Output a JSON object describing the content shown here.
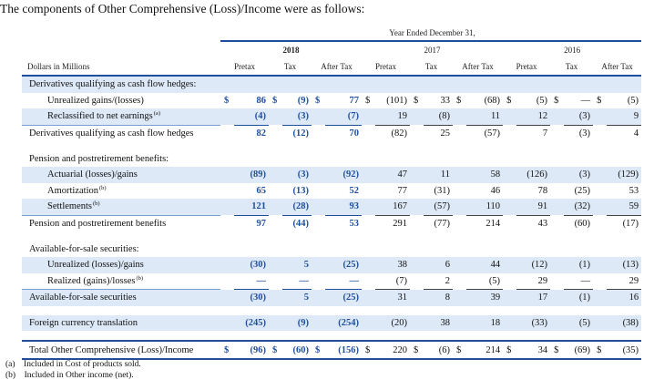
{
  "intro": "The components of Other Comprehensive (Loss)/Income were as follows:",
  "header": {
    "year_ended": "Year Ended December 31,",
    "years": [
      "2018",
      "2017",
      "2016"
    ],
    "units": "Dollars in Millions",
    "cols": [
      "Pretax",
      "Tax",
      "After Tax",
      "Pretax",
      "Tax",
      "After Tax",
      "Pretax",
      "Tax",
      "After Tax"
    ]
  },
  "rows": [
    {
      "label": "Derivatives qualifying as cash flow hedges:",
      "type": "section",
      "shade": true
    },
    {
      "label": "Unrealized gains/(losses)",
      "sup": "",
      "type": "item",
      "cur": true,
      "vals": [
        "86",
        "(9)",
        "77",
        "(101)",
        "33",
        "(68)",
        "(5)",
        "—",
        "(5)"
      ]
    },
    {
      "label": "Reclassified to net earnings",
      "sup": "(a)",
      "type": "item",
      "shade": true,
      "vals": [
        "(4)",
        "(3)",
        "(7)",
        "19",
        "(8)",
        "11",
        "12",
        "(3)",
        "9"
      ]
    },
    {
      "label": "Derivatives qualifying as cash flow hedges",
      "type": "subtotal",
      "vals": [
        "82",
        "(12)",
        "70",
        "(82)",
        "25",
        "(57)",
        "7",
        "(3)",
        "4"
      ]
    },
    {
      "type": "spacer"
    },
    {
      "label": "Pension and postretirement benefits:",
      "type": "section"
    },
    {
      "label": "Actuarial (losses)/gains",
      "sup": "",
      "type": "item",
      "shade": true,
      "vals": [
        "(89)",
        "(3)",
        "(92)",
        "47",
        "11",
        "58",
        "(126)",
        "(3)",
        "(129)"
      ]
    },
    {
      "label": "Amortization",
      "sup": "(b)",
      "type": "item",
      "vals": [
        "65",
        "(13)",
        "52",
        "77",
        "(31)",
        "46",
        "78",
        "(25)",
        "53"
      ]
    },
    {
      "label": "Settlements",
      "sup": "(b)",
      "type": "item",
      "shade": true,
      "vals": [
        "121",
        "(28)",
        "93",
        "167",
        "(57)",
        "110",
        "91",
        "(32)",
        "59"
      ]
    },
    {
      "label": "Pension and postretirement benefits",
      "type": "subtotal",
      "vals": [
        "97",
        "(44)",
        "53",
        "291",
        "(77)",
        "214",
        "43",
        "(60)",
        "(17)"
      ]
    },
    {
      "type": "spacer"
    },
    {
      "label": "Available-for-sale securities:",
      "type": "section"
    },
    {
      "label": "Unrealized (losses)/gains",
      "sup": "",
      "type": "item",
      "shade": true,
      "vals": [
        "(30)",
        "5",
        "(25)",
        "38",
        "6",
        "44",
        "(12)",
        "(1)",
        "(13)"
      ]
    },
    {
      "label": "Realized (gains)/losses",
      "sup": "(b)",
      "type": "item",
      "vals": [
        "—",
        "—",
        "—",
        "(7)",
        "2",
        "(5)",
        "29",
        "—",
        "29"
      ]
    },
    {
      "label": "Available-for-sale securities",
      "type": "subtotal",
      "shade": true,
      "vals": [
        "(30)",
        "5",
        "(25)",
        "31",
        "8",
        "39",
        "17",
        "(1)",
        "16"
      ]
    },
    {
      "type": "spacer"
    },
    {
      "label": "Foreign currency translation",
      "type": "subtotal",
      "shade": true,
      "vals": [
        "(245)",
        "(9)",
        "(254)",
        "(20)",
        "38",
        "18",
        "(33)",
        "(5)",
        "(38)"
      ]
    },
    {
      "type": "spacer"
    },
    {
      "label": "Total Other Comprehensive (Loss)/Income",
      "type": "total",
      "cur": true,
      "vals": [
        "(96)",
        "(60)",
        "(156)",
        "220",
        "(6)",
        "214",
        "34",
        "(69)",
        "(35)"
      ]
    }
  ],
  "currency": "$",
  "footnotes": [
    {
      "mark": "(a)",
      "text": "Included in Cost of products sold."
    },
    {
      "mark": "(b)",
      "text": "Included in Other income (net)."
    }
  ]
}
